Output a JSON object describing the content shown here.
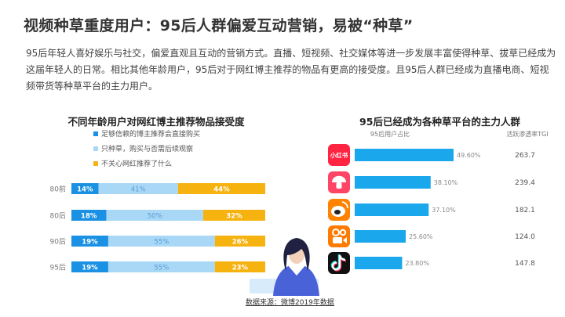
{
  "page": {
    "title": "视频种草重度用户：95后人群偏爱互动营销，易被“种草”",
    "intro": "95后年轻人喜好娱乐与社交，偏爱直观且互动的营销方式。直播、短视频、社交媒体等进一步发展丰富使得种草、拔草已经成为这届年轻人的日常。相比其他年龄用户，95后对于网红博主推荐的物品有更高的接受度。且95后人群已经成为直播电商、短视频带货等种草平台的主力用户。",
    "source": "数据来源：微博2019年数据"
  },
  "colors": {
    "blue_dark": "#1a91e3",
    "blue_light": "#a8d8f6",
    "yellow": "#f6b20f",
    "bar_right": "#1aa7ec",
    "label_light": "#ffffff",
    "label_mid": "#5b9bd5"
  },
  "chart_data": [
    {
      "type": "bar",
      "orientation": "horizontal",
      "stacked": true,
      "title": "不同年龄用户对网红博主推荐物品接受度",
      "categories": [
        "80前",
        "80后",
        "90后",
        "95后"
      ],
      "series": [
        {
          "name": "足够信赖的博主推荐会直接购买",
          "values": [
            14,
            18,
            19,
            19
          ]
        },
        {
          "name": "只种草，购买与否需后续观察",
          "values": [
            41,
            50,
            55,
            55
          ]
        },
        {
          "name": "不关心网红推荐了什么",
          "values": [
            44,
            32,
            26,
            23
          ]
        }
      ],
      "value_labels": [
        [
          "14%",
          "41%",
          "44%"
        ],
        [
          "18%",
          "50%",
          "32%"
        ],
        [
          "19%",
          "55%",
          "26%"
        ],
        [
          "19%",
          "55%",
          "23%"
        ]
      ],
      "xlim": [
        0,
        100
      ],
      "legend": "top-left"
    },
    {
      "type": "bar",
      "orientation": "horizontal",
      "title": "95后已经成为各种草平台的主力人群",
      "column_headers": {
        "share": "95后用户占比",
        "tgi": "活跃渗透率TGI"
      },
      "platforms": [
        {
          "icon": "xiaohongshu-icon",
          "label": "小红书",
          "share": 49.6,
          "share_label": "49.60%",
          "tgi": "263.7",
          "color": "#ff2442"
        },
        {
          "icon": "mushroom-street-icon",
          "label": "",
          "share": 38.1,
          "share_label": "38.10%",
          "tgi": "239.4",
          "color": "#ff4466"
        },
        {
          "icon": "weibo-icon",
          "label": "",
          "share": 37.1,
          "share_label": "37.10%",
          "tgi": "182.1",
          "color": "#ff8200"
        },
        {
          "icon": "kuaishou-icon",
          "label": "",
          "share": 25.6,
          "share_label": "25.60%",
          "tgi": "124.0",
          "color": "#ff7a00"
        },
        {
          "icon": "douyin-icon",
          "label": "",
          "share": 23.8,
          "share_label": "23.80%",
          "tgi": "147.8",
          "color": "#111111"
        }
      ]
    }
  ]
}
